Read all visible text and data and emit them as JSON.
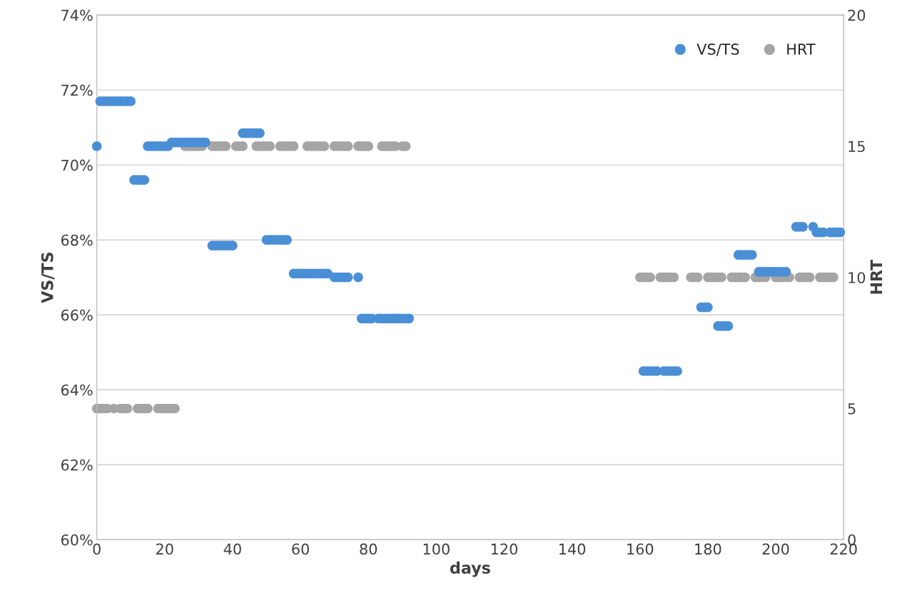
{
  "chart_data": {
    "type": "scatter",
    "xlabel": "days",
    "ylabel": "VS/TS",
    "y2label": "HRT",
    "xlim": [
      0,
      220
    ],
    "xticks": [
      0,
      20,
      40,
      60,
      80,
      100,
      120,
      140,
      160,
      180,
      200,
      220
    ],
    "ylim": [
      60,
      74
    ],
    "yticks": [
      {
        "value": 60,
        "label": "60%"
      },
      {
        "value": 62,
        "label": "62%"
      },
      {
        "value": 64,
        "label": "64%"
      },
      {
        "value": 66,
        "label": "66%"
      },
      {
        "value": 68,
        "label": "68%"
      },
      {
        "value": 70,
        "label": "70%"
      },
      {
        "value": 72,
        "label": "72%"
      },
      {
        "value": 74,
        "label": "74%"
      }
    ],
    "y2lim": [
      0,
      20
    ],
    "y2ticks": [
      0,
      5,
      10,
      15,
      20
    ],
    "grid": "y",
    "legend": "top right",
    "marker": "circle",
    "series": [
      {
        "name": "VS/TS",
        "color": "#4a8fd6",
        "x": [
          0,
          1,
          2,
          3,
          4,
          5,
          6,
          7,
          8,
          9,
          10,
          11,
          12,
          13,
          14,
          15,
          16,
          17,
          18,
          19,
          20,
          21,
          22,
          23,
          24,
          25,
          26,
          27,
          28,
          29,
          30,
          31,
          32,
          34,
          35,
          36,
          37,
          38,
          39,
          40,
          43,
          44,
          45,
          46,
          47,
          48,
          50,
          51,
          52,
          53,
          54,
          55,
          56,
          58,
          59,
          60,
          61,
          62,
          63,
          64,
          65,
          66,
          67,
          68,
          70,
          71,
          72,
          73,
          74,
          77,
          78,
          79,
          80,
          81,
          83,
          84,
          85,
          86,
          87,
          88,
          89,
          90,
          91,
          92,
          161,
          162,
          163,
          164,
          165,
          167,
          168,
          169,
          170,
          171,
          178,
          179,
          180,
          183,
          184,
          185,
          186,
          189,
          190,
          191,
          192,
          193,
          195,
          196,
          197,
          198,
          199,
          200,
          201,
          202,
          203,
          206,
          207,
          208,
          211,
          212,
          213,
          214,
          216,
          217,
          218,
          219
        ],
        "values": [
          70.5,
          71.7,
          71.7,
          71.7,
          71.7,
          71.7,
          71.7,
          71.7,
          71.7,
          71.7,
          71.7,
          69.6,
          69.6,
          69.6,
          69.6,
          70.5,
          70.5,
          70.5,
          70.5,
          70.5,
          70.5,
          70.5,
          70.6,
          70.6,
          70.6,
          70.6,
          70.6,
          70.6,
          70.6,
          70.6,
          70.6,
          70.6,
          70.6,
          67.85,
          67.85,
          67.85,
          67.85,
          67.85,
          67.85,
          67.85,
          70.85,
          70.85,
          70.85,
          70.85,
          70.85,
          70.85,
          68.0,
          68.0,
          68.0,
          68.0,
          68.0,
          68.0,
          68.0,
          67.1,
          67.1,
          67.1,
          67.1,
          67.1,
          67.1,
          67.1,
          67.1,
          67.1,
          67.1,
          67.1,
          67.0,
          67.0,
          67.0,
          67.0,
          67.0,
          67.0,
          65.9,
          65.9,
          65.9,
          65.9,
          65.9,
          65.9,
          65.9,
          65.9,
          65.9,
          65.9,
          65.9,
          65.9,
          65.9,
          65.9,
          64.5,
          64.5,
          64.5,
          64.5,
          64.5,
          64.5,
          64.5,
          64.5,
          64.5,
          64.5,
          66.2,
          66.2,
          66.2,
          65.7,
          65.7,
          65.7,
          65.7,
          67.6,
          67.6,
          67.6,
          67.6,
          67.6,
          67.15,
          67.15,
          67.15,
          67.15,
          67.15,
          67.15,
          67.15,
          67.15,
          67.15,
          68.35,
          68.35,
          68.35,
          68.35,
          68.2,
          68.2,
          68.2,
          68.2,
          68.2,
          68.2,
          68.2
        ]
      },
      {
        "name": "HRT",
        "color": "#a5a5a5",
        "axis": "y2",
        "x": [
          0,
          1,
          2,
          3,
          5,
          7,
          8,
          9,
          12,
          13,
          14,
          15,
          18,
          19,
          20,
          21,
          22,
          23,
          26,
          27,
          28,
          29,
          30,
          31,
          34,
          35,
          36,
          37,
          38,
          41,
          42,
          43,
          47,
          48,
          49,
          50,
          51,
          54,
          55,
          56,
          57,
          58,
          62,
          63,
          64,
          65,
          66,
          67,
          70,
          71,
          72,
          73,
          74,
          77,
          78,
          79,
          80,
          84,
          85,
          86,
          87,
          88,
          90,
          91,
          160,
          161,
          162,
          163,
          166,
          167,
          168,
          169,
          170,
          175,
          176,
          177,
          180,
          181,
          182,
          183,
          184,
          187,
          188,
          189,
          190,
          191,
          194,
          195,
          196,
          197,
          200,
          201,
          202,
          203,
          204,
          207,
          208,
          209,
          210,
          213,
          214,
          215,
          216,
          217
        ],
        "values": [
          5,
          5,
          5,
          5,
          5,
          5,
          5,
          5,
          5,
          5,
          5,
          5,
          5,
          5,
          5,
          5,
          5,
          5,
          15,
          15,
          15,
          15,
          15,
          15,
          15,
          15,
          15,
          15,
          15,
          15,
          15,
          15,
          15,
          15,
          15,
          15,
          15,
          15,
          15,
          15,
          15,
          15,
          15,
          15,
          15,
          15,
          15,
          15,
          15,
          15,
          15,
          15,
          15,
          15,
          15,
          15,
          15,
          15,
          15,
          15,
          15,
          15,
          15,
          15,
          10,
          10,
          10,
          10,
          10,
          10,
          10,
          10,
          10,
          10,
          10,
          10,
          10,
          10,
          10,
          10,
          10,
          10,
          10,
          10,
          10,
          10,
          10,
          10,
          10,
          10,
          10,
          10,
          10,
          10,
          10,
          10,
          10,
          10,
          10,
          10,
          10,
          10,
          10,
          10
        ]
      }
    ]
  }
}
